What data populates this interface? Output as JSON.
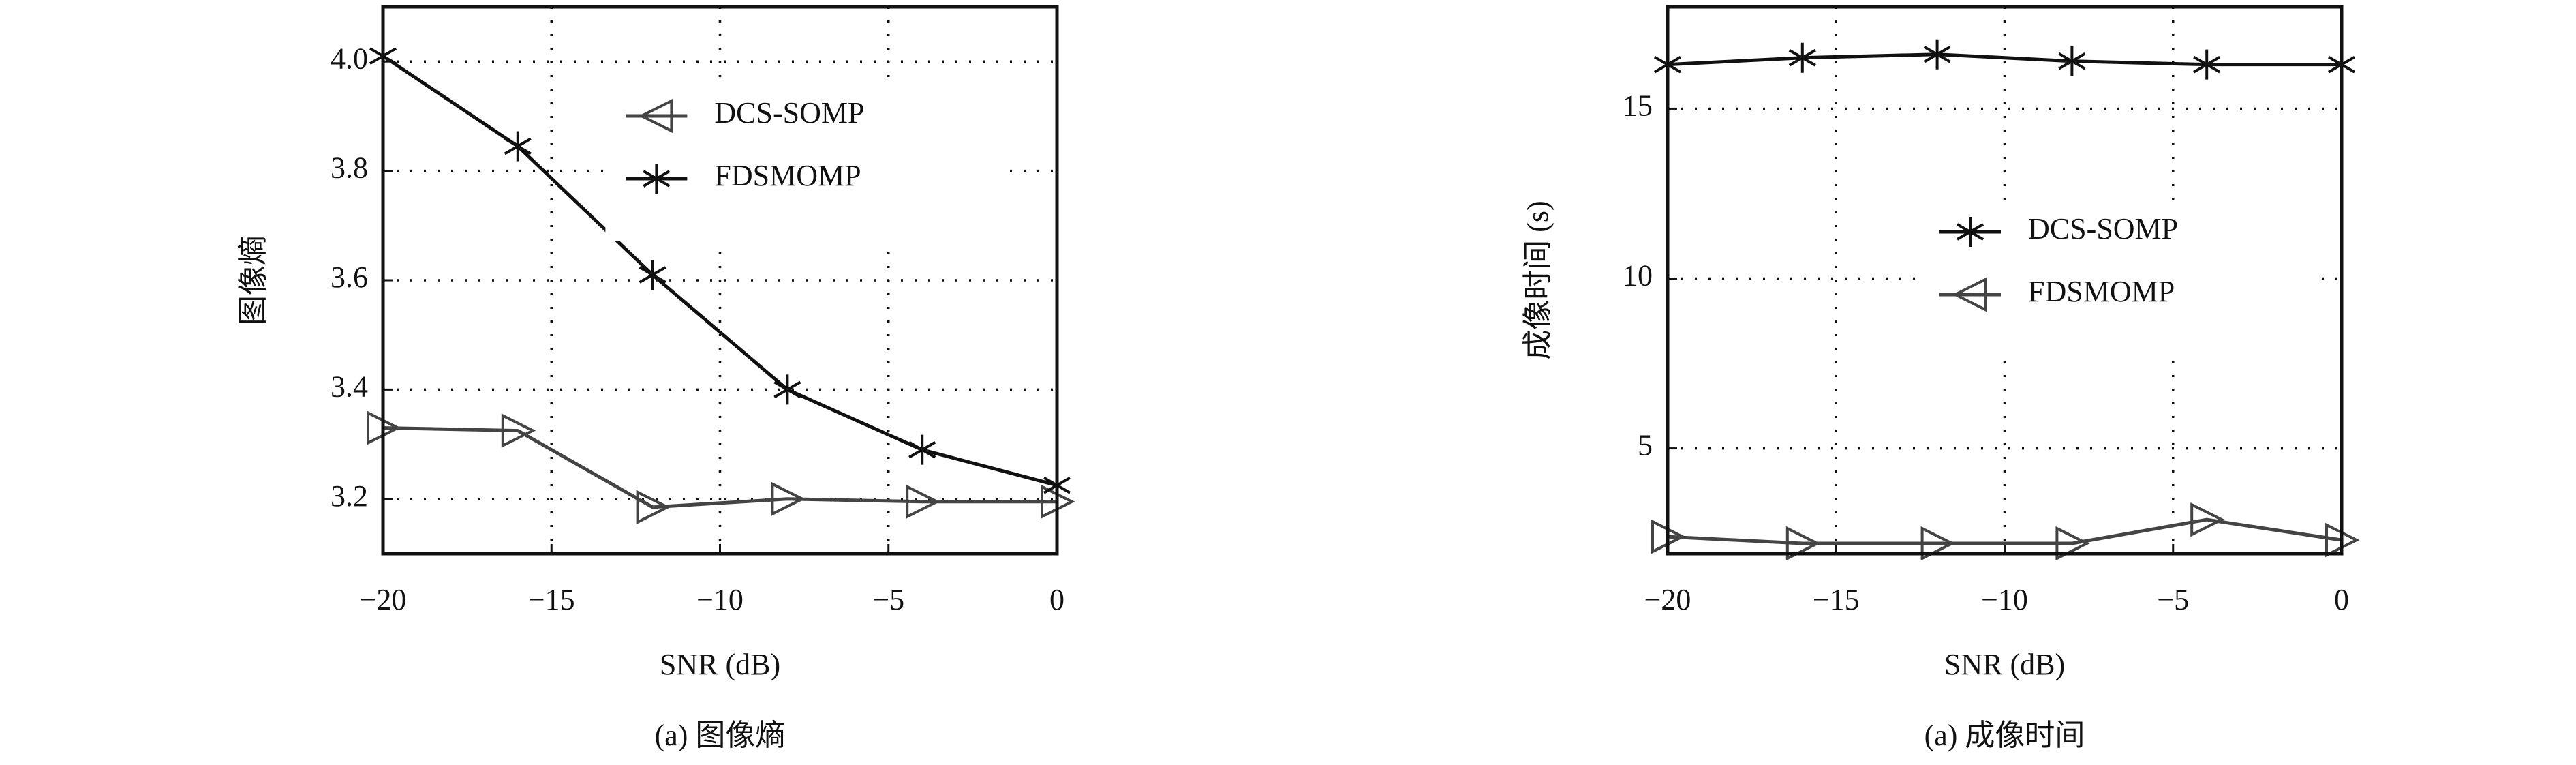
{
  "chart_data": [
    {
      "type": "line",
      "ylabel": "图像熵",
      "xlabel": "SNR (dB)",
      "caption": "(a) 图像熵",
      "x": [
        -20,
        -16,
        -12,
        -8,
        -4,
        0
      ],
      "series": [
        {
          "name": "DCS-SOMP",
          "color": "#444444",
          "marker": "triangle",
          "values": [
            3.33,
            3.325,
            3.185,
            3.2,
            3.195,
            3.195
          ]
        },
        {
          "name": "FDSMOMP",
          "color": "#111111",
          "marker": "star",
          "values": [
            4.01,
            3.845,
            3.61,
            3.4,
            3.29,
            3.225
          ]
        }
      ],
      "xlim": [
        -20,
        0
      ],
      "ylim": [
        3.1,
        4.1
      ],
      "xticks": [
        {
          "value": -20,
          "label": "−20"
        },
        {
          "value": -15,
          "label": "−15"
        },
        {
          "value": -10,
          "label": "−10"
        },
        {
          "value": -5,
          "label": "−5"
        },
        0
      ],
      "yticks": [
        3.2,
        3.4,
        3.6,
        3.8,
        {
          "value": 4,
          "label": "4.0"
        }
      ],
      "grid": true,
      "legend": "upper center"
    },
    {
      "type": "line",
      "ylabel": "成像时间 (s)",
      "xlabel": "SNR (dB)",
      "caption": "(a) 成像时间",
      "x": [
        -20,
        -16,
        -12,
        -8,
        -4,
        0
      ],
      "series": [
        {
          "name": "DCS-SOMP",
          "color": "#111111",
          "marker": "star",
          "values": [
            16.3,
            16.5,
            16.6,
            16.4,
            16.3,
            16.3
          ]
        },
        {
          "name": "FDSMOMP",
          "color": "#444444",
          "marker": "triangle",
          "values": [
            2.4,
            2.2,
            2.2,
            2.2,
            2.9,
            2.3
          ]
        }
      ],
      "xlim": [
        -20,
        0
      ],
      "ylim": [
        1.9,
        18
      ],
      "xticks": [
        {
          "value": -20,
          "label": "−20"
        },
        {
          "value": -15,
          "label": "−15"
        },
        {
          "value": -10,
          "label": "−10"
        },
        {
          "value": -5,
          "label": "−5"
        },
        0
      ],
      "yticks": [
        5,
        10,
        15
      ],
      "grid": true,
      "legend": "center right"
    }
  ]
}
